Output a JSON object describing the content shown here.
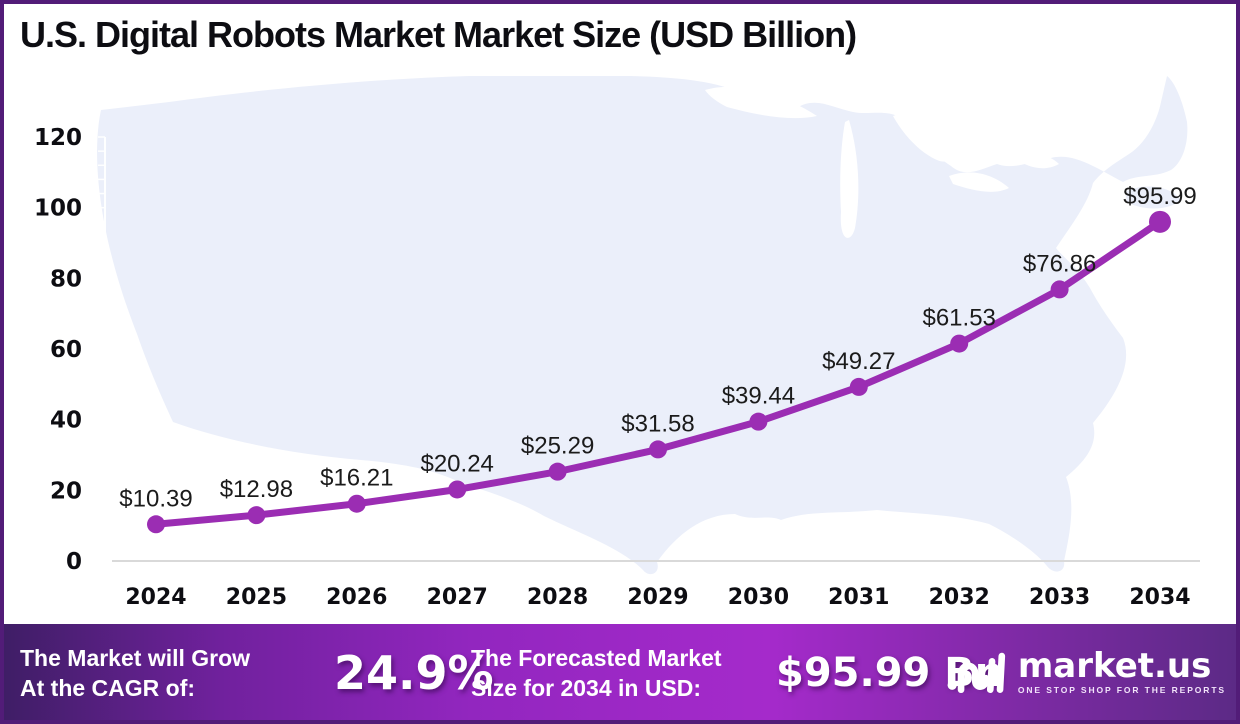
{
  "title": "U.S. Digital Robots Market Market Size (USD Billion)",
  "chart_data": {
    "type": "line",
    "title": "U.S. Digital Robots Market Market Size (USD Billion)",
    "x": [
      2024,
      2025,
      2026,
      2027,
      2028,
      2029,
      2030,
      2031,
      2032,
      2033,
      2034
    ],
    "series": [
      {
        "name": "Market Size (USD Billion)",
        "values": [
          10.39,
          12.98,
          16.21,
          20.24,
          25.29,
          31.58,
          39.44,
          49.27,
          61.53,
          76.86,
          95.99
        ]
      }
    ],
    "point_labels": [
      "$10.39",
      "$12.98",
      "$16.21",
      "$20.24",
      "$25.29",
      "$31.58",
      "$39.44",
      "$49.27",
      "$61.53",
      "$76.86",
      "$95.99"
    ],
    "label_prefix": "$",
    "ylim": [
      0,
      120
    ],
    "yticks": [
      0,
      20,
      40,
      60,
      80,
      100,
      120
    ],
    "xlabel": "",
    "ylabel": "",
    "grid": false,
    "legend": "none",
    "line_color": "#9B2DB3",
    "background_hint": "light U.S. map silhouette"
  },
  "footer": {
    "cagr_label_line1": "The Market will Grow",
    "cagr_label_line2": "At the CAGR of:",
    "cagr_value": "24.9%",
    "forecast_label_line1": "The Forecasted Market",
    "forecast_label_line2": "Size for 2034 in USD:",
    "forecast_value": "$95.99 Bn",
    "brand": "market.us",
    "brand_tagline": "ONE STOP SHOP FOR THE REPORTS"
  },
  "colors": {
    "accent_line": "#9B2DB3",
    "map_fill": "#ebeffa",
    "frame_border": "#521c78",
    "baseline": "#d9d9d9",
    "footer_gradient_left": "#3f1e66",
    "footer_gradient_mid": "#a52acb",
    "footer_gradient_right": "#5c2a86"
  }
}
